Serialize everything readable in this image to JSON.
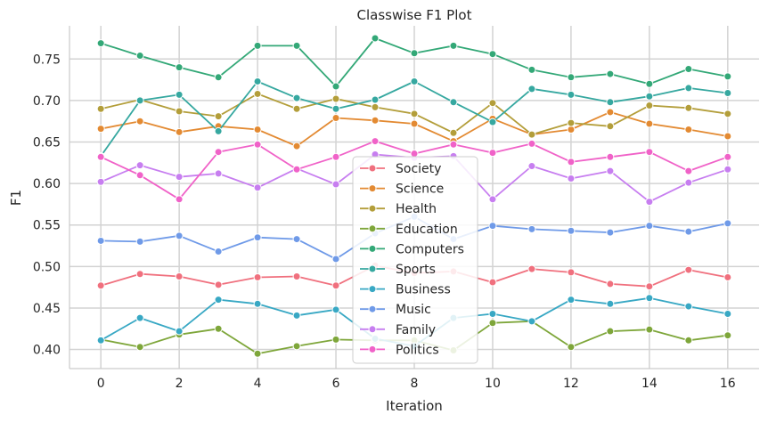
{
  "chart_data": {
    "type": "line",
    "title": "Classwise F1 Plot",
    "xlabel": "Iteration",
    "ylabel": "F1",
    "xlim": [
      -0.8,
      16.8
    ],
    "ylim": [
      0.377,
      0.79
    ],
    "xticks": [
      0,
      2,
      4,
      6,
      8,
      10,
      12,
      14,
      16
    ],
    "yticks": [
      0.4,
      0.45,
      0.5,
      0.55,
      0.6,
      0.65,
      0.7,
      0.75
    ],
    "ytick_labels": [
      "0.40",
      "0.45",
      "0.50",
      "0.55",
      "0.60",
      "0.65",
      "0.70",
      "0.75"
    ],
    "grid": true,
    "legend_position": "center",
    "x": [
      0,
      1,
      2,
      3,
      4,
      5,
      6,
      7,
      8,
      9,
      10,
      11,
      12,
      13,
      14,
      15,
      16
    ],
    "series": [
      {
        "name": "Society",
        "color": "#f0707e",
        "values": [
          0.477,
          0.491,
          0.488,
          0.478,
          0.487,
          0.488,
          0.477,
          0.501,
          0.492,
          0.494,
          0.481,
          0.497,
          0.493,
          0.479,
          0.476,
          0.496,
          0.487
        ]
      },
      {
        "name": "Science",
        "color": "#e38a32",
        "values": [
          0.666,
          0.675,
          0.662,
          0.669,
          0.665,
          0.645,
          0.679,
          0.676,
          0.672,
          0.651,
          0.678,
          0.659,
          0.665,
          0.686,
          0.672,
          0.665,
          0.657
        ]
      },
      {
        "name": "Health",
        "color": "#b39e3a",
        "values": [
          0.69,
          0.701,
          0.687,
          0.681,
          0.708,
          0.69,
          0.702,
          0.692,
          0.684,
          0.661,
          0.697,
          0.659,
          0.673,
          0.669,
          0.694,
          0.691,
          0.684
        ]
      },
      {
        "name": "Education",
        "color": "#7ea63a",
        "values": [
          0.412,
          0.403,
          0.418,
          0.425,
          0.395,
          0.404,
          0.412,
          0.411,
          0.411,
          0.399,
          0.432,
          0.434,
          0.403,
          0.422,
          0.424,
          0.411,
          0.417
        ]
      },
      {
        "name": "Computers",
        "color": "#33a877",
        "values": [
          0.769,
          0.754,
          0.74,
          0.728,
          0.766,
          0.766,
          0.717,
          0.775,
          0.757,
          0.766,
          0.756,
          0.737,
          0.728,
          0.732,
          0.72,
          0.738,
          0.729
        ]
      },
      {
        "name": "Sports",
        "color": "#36a8a0",
        "values": [
          0.633,
          0.7,
          0.707,
          0.663,
          0.723,
          0.703,
          0.69,
          0.701,
          0.723,
          0.698,
          0.674,
          0.714,
          0.707,
          0.698,
          0.705,
          0.715,
          0.709
        ]
      },
      {
        "name": "Business",
        "color": "#38a8c4",
        "values": [
          0.411,
          0.438,
          0.422,
          0.46,
          0.455,
          0.441,
          0.448,
          0.413,
          0.404,
          0.438,
          0.443,
          0.434,
          0.46,
          0.455,
          0.462,
          0.452,
          0.443
        ]
      },
      {
        "name": "Music",
        "color": "#6f9ae8",
        "values": [
          0.531,
          0.53,
          0.537,
          0.518,
          0.535,
          0.533,
          0.509,
          0.54,
          0.56,
          0.533,
          0.549,
          0.545,
          0.543,
          0.541,
          0.549,
          0.542,
          0.552
        ]
      },
      {
        "name": "Family",
        "color": "#c77ef0",
        "values": [
          0.602,
          0.622,
          0.608,
          0.612,
          0.595,
          0.618,
          0.599,
          0.635,
          0.631,
          0.633,
          0.581,
          0.621,
          0.606,
          0.615,
          0.578,
          0.601,
          0.617
        ]
      },
      {
        "name": "Politics",
        "color": "#f062c8",
        "values": [
          0.632,
          0.61,
          0.581,
          0.638,
          0.647,
          0.617,
          0.632,
          0.651,
          0.636,
          0.647,
          0.637,
          0.648,
          0.626,
          0.632,
          0.638,
          0.615,
          0.632
        ]
      }
    ]
  }
}
